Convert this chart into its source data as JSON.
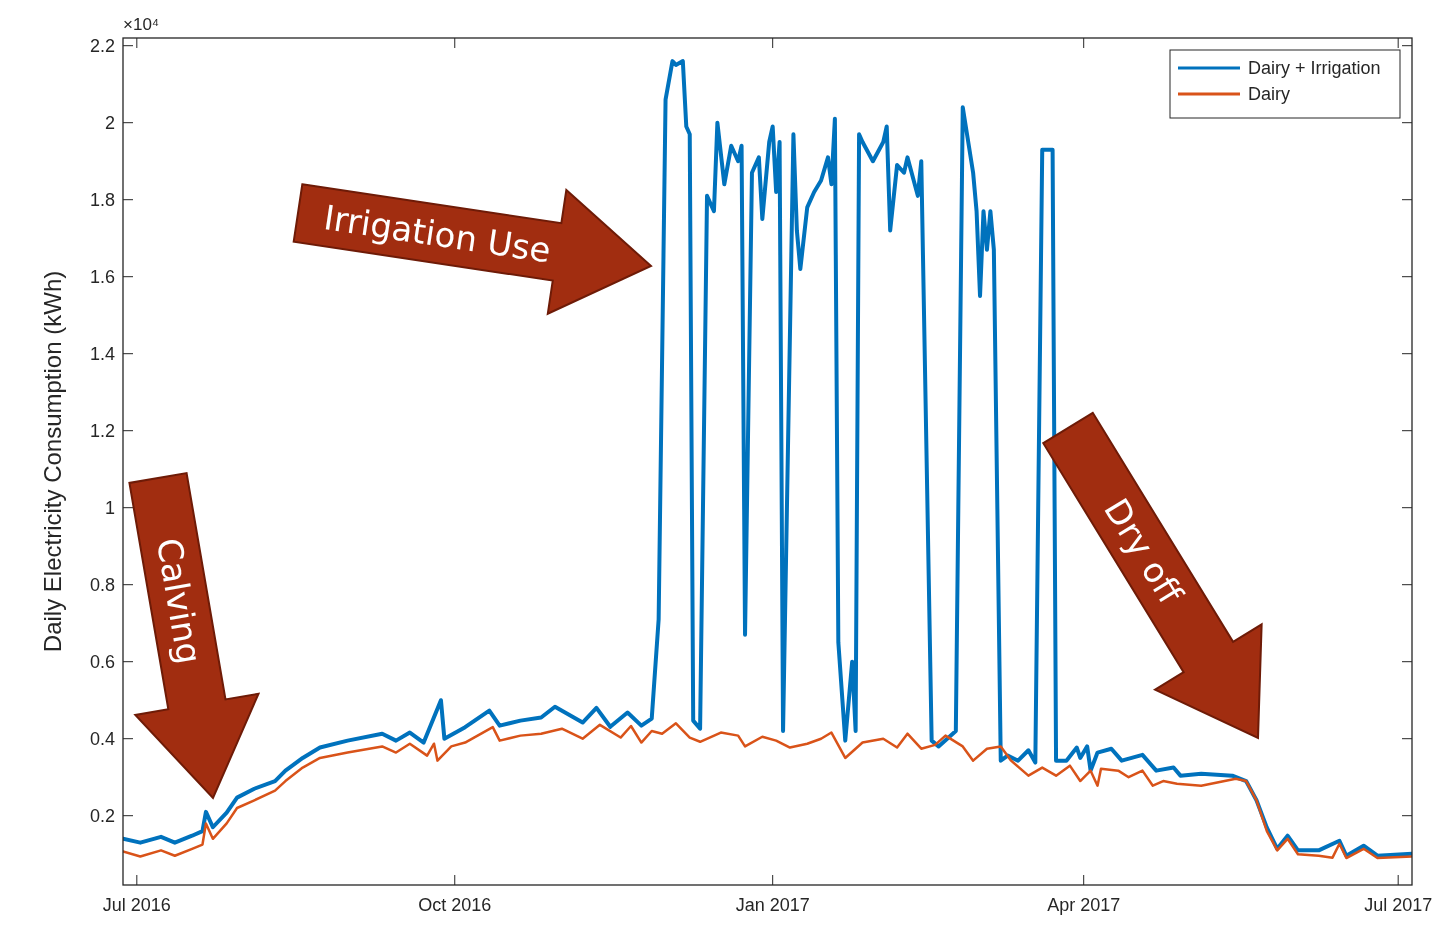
{
  "chart_data": {
    "type": "line",
    "ylabel": "Daily Electricity Consumption (kWh)",
    "annotations": [
      "×10⁴",
      "Irrigation Use",
      "Calving",
      "Dry off"
    ],
    "xlim": [
      "2016-06-27",
      "2017-07-05"
    ],
    "xticks": [
      {
        "value": "2016-07-01",
        "label": "Jul 2016"
      },
      {
        "value": "2016-10-01",
        "label": "Oct 2016"
      },
      {
        "value": "2017-01-01",
        "label": "Jan 2017"
      },
      {
        "value": "2017-04-01",
        "label": "Apr 2017"
      },
      {
        "value": "2017-07-01",
        "label": "Jul 2017"
      }
    ],
    "ylim": [
      0.02,
      2.22
    ],
    "yticks": [
      0.2,
      0.4,
      0.6,
      0.8,
      1,
      1.2,
      1.4,
      1.6,
      1.8,
      2,
      2.2
    ],
    "grid": false,
    "legend": "top right",
    "line_style": "solid",
    "marker": "none",
    "series": [
      {
        "name": "Dairy + Irrigation",
        "color": "#0072bd",
        "x": [
          "2016-06-27",
          "2016-07-02",
          "2016-07-08",
          "2016-07-12",
          "2016-07-17",
          "2016-07-20",
          "2016-07-21",
          "2016-07-23",
          "2016-07-27",
          "2016-07-30",
          "2016-08-04",
          "2016-08-10",
          "2016-08-13",
          "2016-08-18",
          "2016-08-23",
          "2016-08-31",
          "2016-09-10",
          "2016-09-14",
          "2016-09-18",
          "2016-09-22",
          "2016-09-27",
          "2016-09-28",
          "2016-10-04",
          "2016-10-11",
          "2016-10-14",
          "2016-10-20",
          "2016-10-26",
          "2016-10-30",
          "2016-11-07",
          "2016-11-11",
          "2016-11-15",
          "2016-11-20",
          "2016-11-24",
          "2016-11-27",
          "2016-11-29",
          "2016-12-01",
          "2016-12-03",
          "2016-12-04",
          "2016-12-06",
          "2016-12-07",
          "2016-12-08",
          "2016-12-09",
          "2016-12-11",
          "2016-12-13",
          "2016-12-15",
          "2016-12-16",
          "2016-12-18",
          "2016-12-20",
          "2016-12-22",
          "2016-12-23",
          "2016-12-24",
          "2016-12-26",
          "2016-12-28",
          "2016-12-29",
          "2016-12-31",
          "2017-01-01",
          "2017-01-02",
          "2017-01-03",
          "2017-01-04",
          "2017-01-07",
          "2017-01-08",
          "2017-01-09",
          "2017-01-11",
          "2017-01-13",
          "2017-01-15",
          "2017-01-17",
          "2017-01-18",
          "2017-01-19",
          "2017-01-20",
          "2017-01-22",
          "2017-01-24",
          "2017-01-25",
          "2017-01-26",
          "2017-01-27",
          "2017-01-30",
          "2017-02-02",
          "2017-02-03",
          "2017-02-04",
          "2017-02-06",
          "2017-02-08",
          "2017-02-09",
          "2017-02-12",
          "2017-02-13",
          "2017-02-16",
          "2017-02-18",
          "2017-02-23",
          "2017-02-25",
          "2017-02-28",
          "2017-03-01",
          "2017-03-02",
          "2017-03-03",
          "2017-03-04",
          "2017-03-05",
          "2017-03-06",
          "2017-03-08",
          "2017-03-10",
          "2017-03-13",
          "2017-03-16",
          "2017-03-18",
          "2017-03-20",
          "2017-03-23",
          "2017-03-24",
          "2017-03-27",
          "2017-03-30",
          "2017-03-31",
          "2017-04-02",
          "2017-04-03",
          "2017-04-05",
          "2017-04-09",
          "2017-04-12",
          "2017-04-18",
          "2017-04-22",
          "2017-04-27",
          "2017-04-29",
          "2017-05-05",
          "2017-05-14",
          "2017-05-18",
          "2017-05-21",
          "2017-05-24",
          "2017-05-27",
          "2017-05-30",
          "2017-06-02",
          "2017-06-08",
          "2017-06-14",
          "2017-06-16",
          "2017-06-21",
          "2017-06-25",
          "2017-07-05"
        ],
        "values": [
          0.14,
          0.13,
          0.145,
          0.13,
          0.148,
          0.16,
          0.21,
          0.17,
          0.208,
          0.247,
          0.27,
          0.29,
          0.317,
          0.35,
          0.377,
          0.395,
          0.413,
          0.395,
          0.416,
          0.39,
          0.5,
          0.4,
          0.43,
          0.473,
          0.434,
          0.447,
          0.455,
          0.483,
          0.442,
          0.48,
          0.431,
          0.468,
          0.434,
          0.452,
          0.71,
          2.06,
          2.16,
          2.15,
          2.16,
          1.99,
          1.97,
          0.447,
          0.426,
          1.81,
          1.77,
          2.0,
          1.84,
          1.94,
          1.9,
          1.94,
          0.67,
          1.87,
          1.91,
          1.75,
          1.95,
          1.99,
          1.82,
          1.95,
          0.42,
          1.97,
          1.72,
          1.62,
          1.78,
          1.82,
          1.85,
          1.91,
          1.84,
          2.01,
          0.65,
          0.395,
          0.6,
          0.42,
          1.97,
          1.95,
          1.9,
          1.95,
          1.99,
          1.72,
          1.89,
          1.87,
          1.91,
          1.81,
          1.9,
          0.395,
          0.38,
          0.42,
          2.04,
          1.87,
          1.77,
          1.55,
          1.77,
          1.67,
          1.77,
          1.67,
          0.343,
          0.356,
          0.343,
          0.37,
          0.338,
          1.93,
          1.93,
          0.343,
          0.343,
          0.377,
          0.35,
          0.38,
          0.317,
          0.364,
          0.374,
          0.343,
          0.358,
          0.317,
          0.325,
          0.304,
          0.309,
          0.304,
          0.29,
          0.24,
          0.169,
          0.114,
          0.148,
          0.11,
          0.11,
          0.135,
          0.096,
          0.122,
          0.096,
          0.101
        ]
      },
      {
        "name": "Dairy",
        "color": "#d95319",
        "x": [
          "2016-06-27",
          "2016-07-02",
          "2016-07-08",
          "2016-07-12",
          "2016-07-17",
          "2016-07-20",
          "2016-07-21",
          "2016-07-23",
          "2016-07-27",
          "2016-07-30",
          "2016-08-04",
          "2016-08-10",
          "2016-08-13",
          "2016-08-18",
          "2016-08-23",
          "2016-08-31",
          "2016-09-10",
          "2016-09-14",
          "2016-09-18",
          "2016-09-23",
          "2016-09-25",
          "2016-09-26",
          "2016-09-30",
          "2016-10-04",
          "2016-10-12",
          "2016-10-14",
          "2016-10-20",
          "2016-10-26",
          "2016-11-01",
          "2016-11-07",
          "2016-11-12",
          "2016-11-18",
          "2016-11-21",
          "2016-11-24",
          "2016-11-27",
          "2016-11-30",
          "2016-12-04",
          "2016-12-08",
          "2016-12-11",
          "2016-12-17",
          "2016-12-22",
          "2016-12-24",
          "2016-12-29",
          "2017-01-02",
          "2017-01-06",
          "2017-01-11",
          "2017-01-15",
          "2017-01-18",
          "2017-01-22",
          "2017-01-27",
          "2017-02-02",
          "2017-02-06",
          "2017-02-09",
          "2017-02-13",
          "2017-02-17",
          "2017-02-20",
          "2017-02-25",
          "2017-02-28",
          "2017-03-04",
          "2017-03-08",
          "2017-03-11",
          "2017-03-16",
          "2017-03-20",
          "2017-03-24",
          "2017-03-28",
          "2017-03-31",
          "2017-04-03",
          "2017-04-05",
          "2017-04-06",
          "2017-04-11",
          "2017-04-14",
          "2017-04-18",
          "2017-04-21",
          "2017-04-24",
          "2017-04-28",
          "2017-05-05",
          "2017-05-15",
          "2017-05-18",
          "2017-05-21",
          "2017-05-24",
          "2017-05-27",
          "2017-05-30",
          "2017-06-02",
          "2017-06-08",
          "2017-06-12",
          "2017-06-14",
          "2017-06-16",
          "2017-06-21",
          "2017-06-25",
          "2017-07-05"
        ],
        "values": [
          0.107,
          0.094,
          0.11,
          0.096,
          0.114,
          0.125,
          0.18,
          0.14,
          0.18,
          0.22,
          0.24,
          0.265,
          0.29,
          0.325,
          0.35,
          0.364,
          0.38,
          0.364,
          0.387,
          0.356,
          0.387,
          0.343,
          0.38,
          0.39,
          0.43,
          0.395,
          0.408,
          0.413,
          0.426,
          0.4,
          0.436,
          0.403,
          0.433,
          0.39,
          0.42,
          0.413,
          0.44,
          0.403,
          0.392,
          0.416,
          0.408,
          0.38,
          0.405,
          0.395,
          0.377,
          0.387,
          0.4,
          0.416,
          0.35,
          0.39,
          0.4,
          0.377,
          0.413,
          0.374,
          0.384,
          0.408,
          0.38,
          0.343,
          0.374,
          0.38,
          0.343,
          0.304,
          0.325,
          0.304,
          0.33,
          0.29,
          0.317,
          0.278,
          0.322,
          0.317,
          0.3,
          0.317,
          0.278,
          0.29,
          0.283,
          0.278,
          0.296,
          0.29,
          0.24,
          0.16,
          0.11,
          0.14,
          0.1,
          0.096,
          0.091,
          0.127,
          0.09,
          0.114,
          0.09,
          0.094
        ]
      }
    ]
  }
}
